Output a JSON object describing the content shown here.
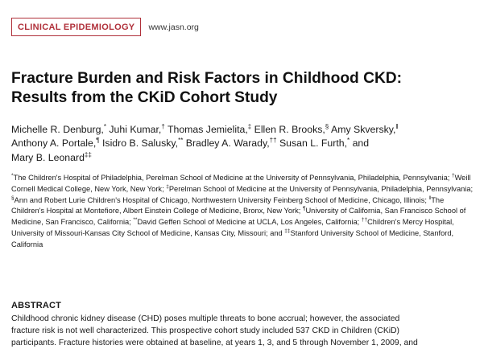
{
  "header": {
    "section": "CLINICAL EPIDEMIOLOGY",
    "url": "www.jasn.org"
  },
  "title": {
    "line1": "Fracture Burden and Risk Factors in Childhood CKD:",
    "line2": "Results from the CKiD Cohort Study"
  },
  "authors": [
    {
      "name": "Michelle R. Denburg,",
      "mark": "*"
    },
    {
      "name": "Juhi Kumar,",
      "mark": "†"
    },
    {
      "name": "Thomas Jemielita,",
      "mark": "‡"
    },
    {
      "name": "Ellen R. Brooks,",
      "mark": "§"
    },
    {
      "name": "Amy Skversky,",
      "mark": "‖"
    },
    {
      "name": "Anthony A. Portale,",
      "mark": "¶"
    },
    {
      "name": "Isidro B. Salusky,",
      "mark": "**"
    },
    {
      "name": "Bradley A. Warady,",
      "mark": "††"
    },
    {
      "name": "Susan L. Furth,",
      "mark": "*"
    },
    {
      "name": "and",
      "mark": ""
    },
    {
      "name": "Mary B. Leonard",
      "mark": "‡‡"
    }
  ],
  "affiliations": [
    {
      "mark": "*",
      "text": "The Children's Hospital of Philadelphia, Perelman School of Medicine at the University of Pennsylvania, Philadelphia, Pennsylvania; "
    },
    {
      "mark": "†",
      "text": "Weill Cornell Medical College, New York, New York; "
    },
    {
      "mark": "‡",
      "text": "Perelman School of Medicine at the University of Pennsylvania, Philadelphia, Pennsylvania; "
    },
    {
      "mark": "§",
      "text": "Ann and Robert Lurie Children's Hospital of Chicago, Northwestern University Feinberg School of Medicine, Chicago, Illinois; "
    },
    {
      "mark": "‖",
      "text": "The Children's Hospital at Montefiore, Albert Einstein College of Medicine, Bronx, New York; "
    },
    {
      "mark": "¶",
      "text": "University of California, San Francisco School of Medicine, San Francisco, California; "
    },
    {
      "mark": "**",
      "text": "David Geffen School of Medicine at UCLA, Los Angeles, California; "
    },
    {
      "mark": "††",
      "text": "Children's Mercy Hospital, University of Missouri-Kansas City School of Medicine, Kansas City, Missouri; and "
    },
    {
      "mark": "‡‡",
      "text": "Stanford University School of Medicine, Stanford, California"
    }
  ],
  "abstract": {
    "heading": "ABSTRACT",
    "lines": [
      "Childhood chronic kidney disease (CHD) poses multiple threats to bone accrual; however, the associated",
      "fracture risk is not well characterized. This prospective cohort study included 537 CKD in Children (CKiD)",
      "participants. Fracture histories were obtained at baseline, at years 1, 3, and 5 through November 1, 2009, and"
    ]
  }
}
